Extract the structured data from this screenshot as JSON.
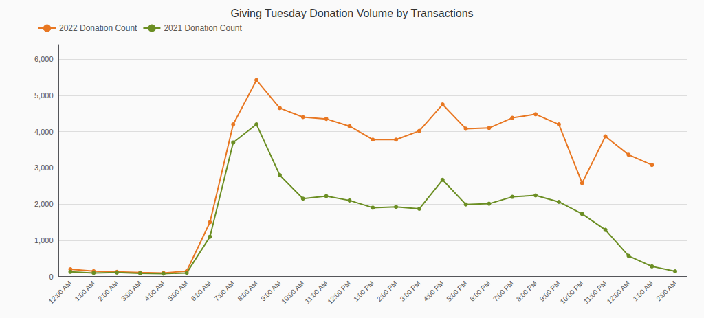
{
  "chart_data": {
    "type": "line",
    "title": "Giving Tuesday Donation Volume by Transactions",
    "categories": [
      "12:00 AM",
      "1:00 AM",
      "2:00 AM",
      "3:00 AM",
      "4:00 AM",
      "5:00 AM",
      "6:00 AM",
      "7:00 AM",
      "8:00 AM",
      "9:00 AM",
      "10:00 AM",
      "11:00 AM",
      "12:00 PM",
      "1:00 PM",
      "2:00 PM",
      "3:00 PM",
      "4:00 PM",
      "5:00 PM",
      "6:00 PM",
      "7:00 PM",
      "8:00 PM",
      "9:00 PM",
      "10:00 PM",
      "11:00 PM",
      "12:00 AM",
      "1:00 AM",
      "2:00 AM"
    ],
    "series": [
      {
        "name": "2022 Donation Count",
        "color": "#E87722",
        "values": [
          200,
          150,
          130,
          110,
          100,
          150,
          1500,
          4200,
          5420,
          4650,
          4400,
          4350,
          4150,
          3780,
          3780,
          4020,
          4750,
          4080,
          4100,
          4380,
          4480,
          4200,
          2580,
          3870,
          3360,
          3080,
          null
        ]
      },
      {
        "name": "2021 Donation Count",
        "color": "#6B8E23",
        "values": [
          130,
          100,
          110,
          90,
          80,
          100,
          1100,
          3700,
          4200,
          2800,
          2150,
          2220,
          2100,
          1900,
          1920,
          1870,
          2670,
          1990,
          2010,
          2200,
          2240,
          2060,
          1730,
          1290,
          570,
          280,
          145
        ]
      }
    ],
    "ylim": [
      0,
      6400
    ],
    "yticks": [
      0,
      1000,
      2000,
      3000,
      4000,
      5000,
      6000
    ],
    "grid": true,
    "legend": "upper left",
    "marker": "circle"
  }
}
